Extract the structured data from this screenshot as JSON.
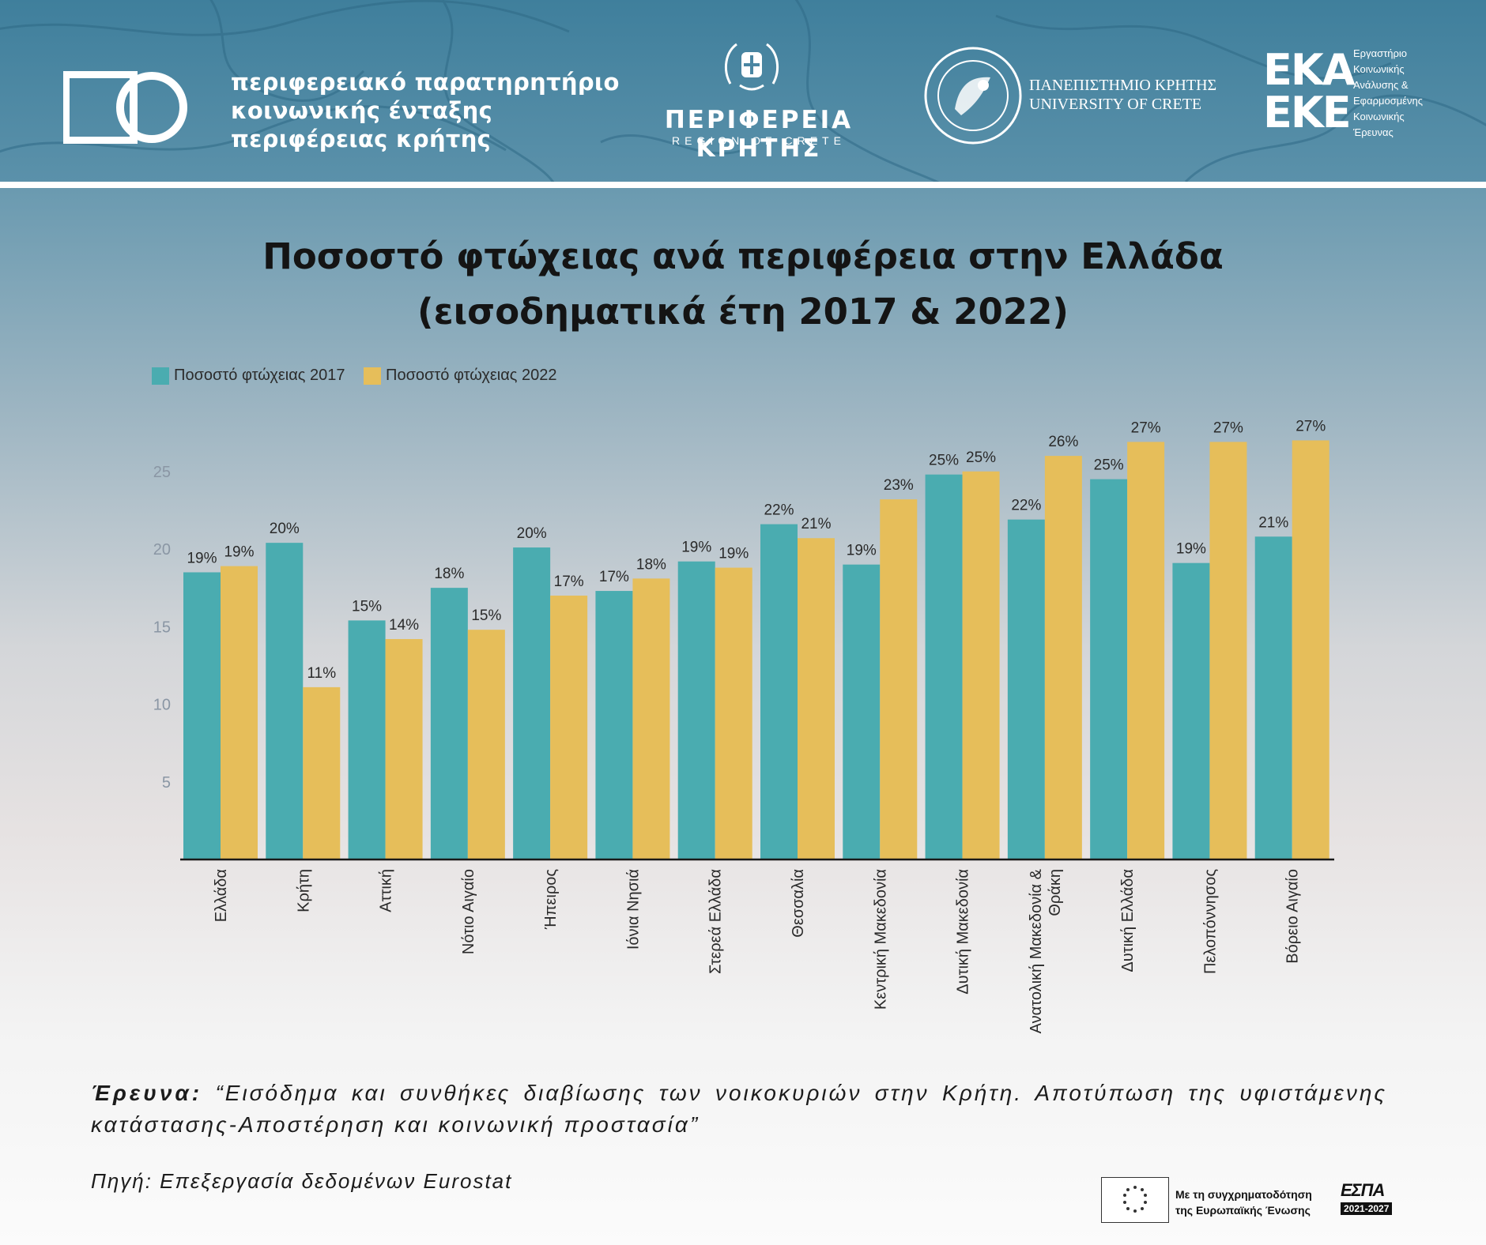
{
  "header": {
    "observatory_lines": [
      "περιφερειακό παρατηρητήριο",
      "κοινωνικής ένταξης",
      "περιφέρειας κρήτης"
    ],
    "region_name": "ΠΕΡΙΦΕΡΕΙΑ ΚΡΗΤΗΣ",
    "region_sub": "REGION OF CRETE",
    "university_lines": [
      "ΠΑΝΕΠΙΣΤΗΜΙΟ ΚΡΗΤΗΣ",
      "UNIVERSITY OF CRETE"
    ],
    "ekke_lines": [
      "ΕΚΑ",
      "ΕΚΕ"
    ],
    "ekke_sub_lines": [
      "Εργαστήριο",
      "Κοινωνικής",
      "Ανάλυσης &",
      "Εφαρμοσμένης",
      "Κοινωνικής",
      "Έρευνας"
    ]
  },
  "colors": {
    "series_2017": "#4aacb0",
    "series_2022": "#e6be5a",
    "axis": "#1a1a1a",
    "tick_label": "#8a96a4"
  },
  "chart_data": {
    "type": "bar",
    "title_lines": [
      "Ποσοστό φτώχειας ανά περιφέρεια στην Ελλάδα",
      "(εισοδηματικά έτη 2017 & 2022)"
    ],
    "categories": [
      "Ελλάδα",
      "Κρήτη",
      "Αττική",
      "Νότιο Αιγαίο",
      "Ήπειρος",
      "Ιόνια Νησιά",
      "Στερεά Ελλάδα",
      "Θεσσαλία",
      "Κεντρική Μακεδονία",
      "Δυτική Μακεδονία",
      "Ανατολική Μακεδονία & Θράκη",
      "Δυτική Ελλάδα",
      "Πελοπόννησος",
      "Βόρειο Αιγαίο"
    ],
    "category_label_lines": [
      [
        "Ελλάδα"
      ],
      [
        "Κρήτη"
      ],
      [
        "Αττική"
      ],
      [
        "Νότιο Αιγαίο"
      ],
      [
        "Ήπειρος"
      ],
      [
        "Ιόνια Νησιά"
      ],
      [
        "Στερεά Ελλάδα"
      ],
      [
        "Θεσσαλία"
      ],
      [
        "Κεντρική Μακεδονία"
      ],
      [
        "Δυτική Μακεδονία"
      ],
      [
        "Ανατολική Μακεδονία &",
        "Θράκη"
      ],
      [
        "Δυτική Ελλάδα"
      ],
      [
        "Πελοπόννησος"
      ],
      [
        "Βόρειο Αιγαίο"
      ]
    ],
    "series": [
      {
        "name": "Ποσοστό φτώχειας 2017",
        "values": [
          18.5,
          20.4,
          15.4,
          17.5,
          20.1,
          17.3,
          19.2,
          21.6,
          19.0,
          24.8,
          21.9,
          24.5,
          19.1,
          20.8
        ],
        "labels": [
          "19%",
          "20%",
          "15%",
          "18%",
          "20%",
          "17%",
          "19%",
          "22%",
          "19%",
          "25%",
          "22%",
          "25%",
          "19%",
          "21%"
        ]
      },
      {
        "name": "Ποσοστό φτώχειας 2022",
        "values": [
          18.9,
          11.1,
          14.2,
          14.8,
          17.0,
          18.1,
          18.8,
          20.7,
          23.2,
          25.0,
          26.0,
          26.9,
          26.9,
          27.0
        ],
        "labels": [
          "19%",
          "11%",
          "14%",
          "15%",
          "17%",
          "18%",
          "19%",
          "21%",
          "23%",
          "25%",
          "26%",
          "27%",
          "27%",
          "27%"
        ]
      }
    ],
    "yticks": [
      5,
      10,
      15,
      20,
      25
    ],
    "ylim": [
      0,
      28
    ],
    "xlabel": "",
    "ylabel": "",
    "legend_position": "top-left",
    "grid": false
  },
  "footer": {
    "research_label": "Έρευνα:",
    "research_text": "“Εισόδημα και συνθήκες διαβίωσης των νοικοκυριών στην Κρήτη. Αποτύπωση της υφιστάμενης κατάστασης-Αποστέρηση και κοινωνική προστασία”",
    "source": "Πηγή: Επεξεργασία δεδομένων Eurostat",
    "eu_lines": [
      "Με τη συγχρηματοδότηση",
      "της Ευρωπαϊκής Ένωσης"
    ],
    "espa_name": "ΕΣΠΑ",
    "espa_years": "2021-2027"
  }
}
